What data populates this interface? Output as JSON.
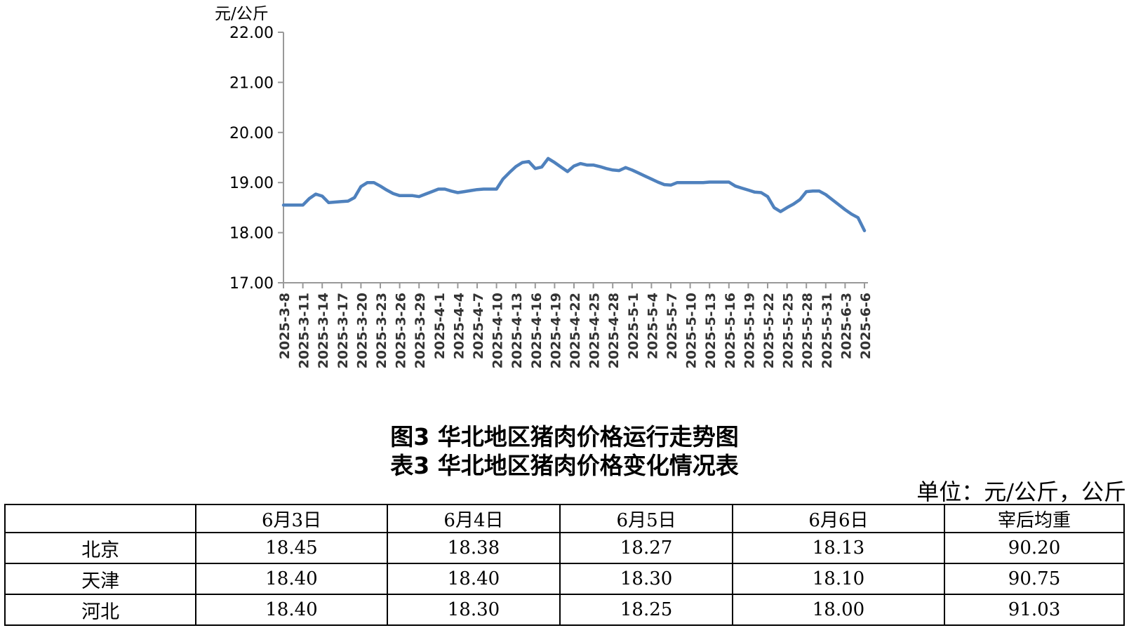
{
  "chart_data": {
    "type": "line",
    "title": "",
    "ylabel": "元/公斤",
    "ylim": [
      17,
      22
    ],
    "yticks": [
      "17.00",
      "18.00",
      "19.00",
      "20.00",
      "21.00",
      "22.00"
    ],
    "xticks": [
      "2025-3-8",
      "2025-3-11",
      "2025-3-14",
      "2025-3-17",
      "2025-3-20",
      "2025-3-23",
      "2025-3-26",
      "2025-3-29",
      "2025-4-1",
      "2025-4-4",
      "2025-4-7",
      "2025-4-10",
      "2025-4-13",
      "2025-4-16",
      "2025-4-19",
      "2025-4-22",
      "2025-4-25",
      "2025-4-28",
      "2025-5-1",
      "2025-5-4",
      "2025-5-7",
      "2025-5-10",
      "2025-5-13",
      "2025-5-16",
      "2025-5-19",
      "2025-5-22",
      "2025-5-25",
      "2025-5-28",
      "2025-5-31",
      "2025-6-3",
      "2025-6-6"
    ],
    "series": [
      {
        "color": "#4f81bd",
        "x": [
          "2025-3-8",
          "2025-3-9",
          "2025-3-10",
          "2025-3-11",
          "2025-3-12",
          "2025-3-13",
          "2025-3-14",
          "2025-3-15",
          "2025-3-16",
          "2025-3-17",
          "2025-3-18",
          "2025-3-19",
          "2025-3-20",
          "2025-3-21",
          "2025-3-22",
          "2025-3-23",
          "2025-3-24",
          "2025-3-25",
          "2025-3-26",
          "2025-3-27",
          "2025-3-28",
          "2025-3-29",
          "2025-3-30",
          "2025-3-31",
          "2025-4-1",
          "2025-4-2",
          "2025-4-3",
          "2025-4-4",
          "2025-4-5",
          "2025-4-6",
          "2025-4-7",
          "2025-4-8",
          "2025-4-9",
          "2025-4-10",
          "2025-4-11",
          "2025-4-12",
          "2025-4-13",
          "2025-4-14",
          "2025-4-15",
          "2025-4-16",
          "2025-4-17",
          "2025-4-18",
          "2025-4-19",
          "2025-4-20",
          "2025-4-21",
          "2025-4-22",
          "2025-4-23",
          "2025-4-24",
          "2025-4-25",
          "2025-4-26",
          "2025-4-27",
          "2025-4-28",
          "2025-4-29",
          "2025-4-30",
          "2025-5-1",
          "2025-5-2",
          "2025-5-3",
          "2025-5-4",
          "2025-5-5",
          "2025-5-6",
          "2025-5-7",
          "2025-5-8",
          "2025-5-9",
          "2025-5-10",
          "2025-5-11",
          "2025-5-12",
          "2025-5-13",
          "2025-5-14",
          "2025-5-15",
          "2025-5-16",
          "2025-5-17",
          "2025-5-18",
          "2025-5-19",
          "2025-5-20",
          "2025-5-21",
          "2025-5-22",
          "2025-5-23",
          "2025-5-24",
          "2025-5-25",
          "2025-5-26",
          "2025-5-27",
          "2025-5-28",
          "2025-5-29",
          "2025-5-30",
          "2025-5-31",
          "2025-6-1",
          "2025-6-2",
          "2025-6-3",
          "2025-6-4",
          "2025-6-5",
          "2025-6-6"
        ],
        "values": [
          18.55,
          18.55,
          18.55,
          18.55,
          18.68,
          18.77,
          18.73,
          18.6,
          18.61,
          18.62,
          18.63,
          18.7,
          18.92,
          19.0,
          19.0,
          18.93,
          18.85,
          18.78,
          18.74,
          18.74,
          18.74,
          18.72,
          18.77,
          18.82,
          18.87,
          18.87,
          18.83,
          18.8,
          18.82,
          18.84,
          18.86,
          18.87,
          18.87,
          18.87,
          19.07,
          19.2,
          19.32,
          19.4,
          19.42,
          19.28,
          19.31,
          19.48,
          19.4,
          19.31,
          19.22,
          19.33,
          19.38,
          19.35,
          19.35,
          19.32,
          19.28,
          19.25,
          19.24,
          19.3,
          19.25,
          19.19,
          19.13,
          19.07,
          19.01,
          18.96,
          18.95,
          19.0,
          19.0,
          19.0,
          19.0,
          19.0,
          19.01,
          19.01,
          19.01,
          19.01,
          18.93,
          18.89,
          18.85,
          18.81,
          18.8,
          18.72,
          18.5,
          18.42,
          18.5,
          18.57,
          18.66,
          18.82,
          18.83,
          18.83,
          18.76,
          18.66,
          18.56,
          18.46,
          18.37,
          18.3,
          18.04
        ]
      }
    ]
  },
  "captions": {
    "figure": "图3  华北地区猪肉价格运行走势图",
    "table": "表3  华北地区猪肉价格变化情况表",
    "unit_note": "单位：元/公斤，公斤"
  },
  "table": {
    "headers": [
      "",
      "6月3日",
      "6月4日",
      "6月5日",
      "6月6日",
      "宰后均重"
    ],
    "rows": [
      [
        "北京",
        "18.45",
        "18.38",
        "18.27",
        "18.13",
        "90.20"
      ],
      [
        "天津",
        "18.40",
        "18.40",
        "18.30",
        "18.10",
        "90.75"
      ],
      [
        "河北",
        "18.40",
        "18.30",
        "18.25",
        "18.00",
        "91.03"
      ]
    ]
  }
}
